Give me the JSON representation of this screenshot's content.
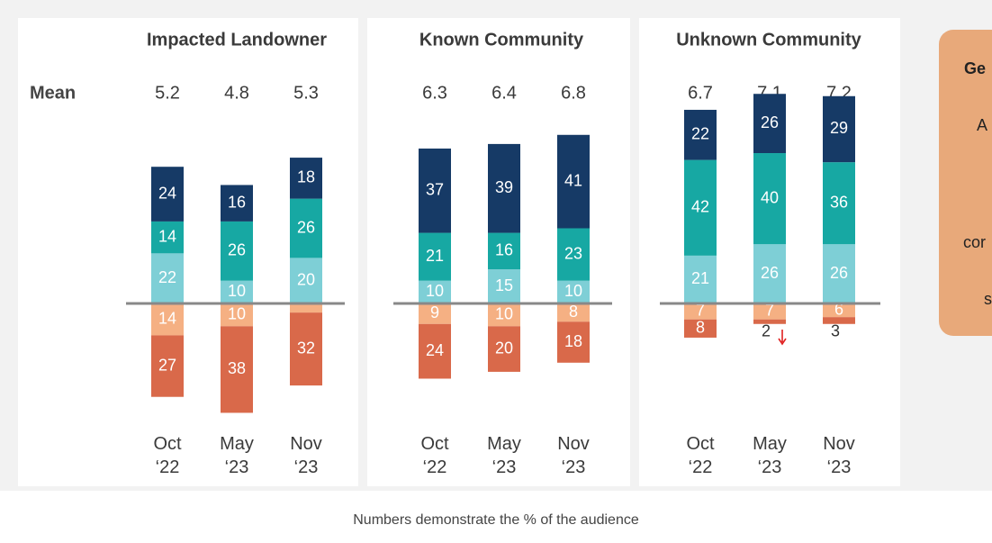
{
  "mean_label": "Mean",
  "note": "Numbers demonstrate the % of the audience",
  "callout": {
    "title": "Ge",
    "lines": [
      "A",
      "cor",
      "s"
    ]
  },
  "chart_data": [
    {
      "type": "bar",
      "stacked": true,
      "title": "Impacted Landowner",
      "categories": [
        "Oct ‘22",
        "May ‘23",
        "Nov ‘23"
      ],
      "means": [
        5.2,
        4.8,
        5.3
      ],
      "series": [
        {
          "color": "#7ecfd6",
          "stack": "up",
          "values": [
            22,
            10,
            20
          ]
        },
        {
          "color": "#17a8a3",
          "stack": "up",
          "values": [
            14,
            26,
            26
          ]
        },
        {
          "color": "#163a66",
          "stack": "up",
          "values": [
            24,
            16,
            18
          ]
        },
        {
          "color": "#f5b083",
          "stack": "down",
          "values": [
            14,
            10,
            4
          ]
        },
        {
          "color": "#d9694a",
          "stack": "down",
          "values": [
            27,
            38,
            32
          ]
        }
      ]
    },
    {
      "type": "bar",
      "stacked": true,
      "title": "Known Community",
      "categories": [
        "Oct ‘22",
        "May ‘23",
        "Nov ‘23"
      ],
      "means": [
        6.3,
        6.4,
        6.8
      ],
      "series": [
        {
          "color": "#7ecfd6",
          "stack": "up",
          "values": [
            10,
            15,
            10
          ]
        },
        {
          "color": "#17a8a3",
          "stack": "up",
          "values": [
            21,
            16,
            23
          ]
        },
        {
          "color": "#163a66",
          "stack": "up",
          "values": [
            37,
            39,
            41
          ]
        },
        {
          "color": "#f5b083",
          "stack": "down",
          "values": [
            9,
            10,
            8
          ]
        },
        {
          "color": "#d9694a",
          "stack": "down",
          "values": [
            24,
            20,
            18
          ]
        }
      ]
    },
    {
      "type": "bar",
      "stacked": true,
      "title": "Unknown Community",
      "categories": [
        "Oct ‘22",
        "May ‘23",
        "Nov ‘23"
      ],
      "means": [
        6.7,
        7.1,
        7.2
      ],
      "series": [
        {
          "color": "#7ecfd6",
          "stack": "up",
          "values": [
            21,
            26,
            26
          ]
        },
        {
          "color": "#17a8a3",
          "stack": "up",
          "values": [
            42,
            40,
            36
          ]
        },
        {
          "color": "#163a66",
          "stack": "up",
          "values": [
            22,
            26,
            29
          ]
        },
        {
          "color": "#f5b083",
          "stack": "down",
          "values": [
            7,
            7,
            6
          ]
        },
        {
          "color": "#d9694a",
          "stack": "down",
          "values": [
            8,
            2,
            3
          ]
        }
      ]
    }
  ]
}
